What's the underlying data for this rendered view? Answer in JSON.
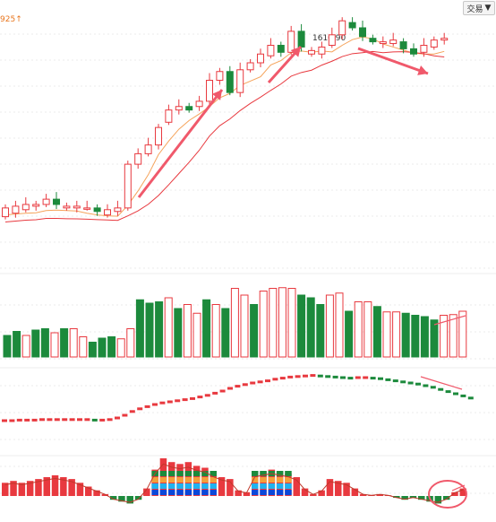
{
  "toolbar": {
    "trade_label": "交易",
    "trade_caret": "▼",
    "trade_icon": "caret-down-icon"
  },
  "header": {
    "price_readout": "925",
    "readout_arrow": "↑",
    "readout_color": "#e8761e"
  },
  "colors": {
    "up": "#e8393f",
    "down": "#1c8a3c",
    "ma_fast": "#f5a35a",
    "ma_slow": "#e8393f",
    "grid": "#d8d8d8",
    "annotation": "#f0596b"
  },
  "chart_data": [
    {
      "type": "candlestick",
      "panel": "price",
      "peak_label": "1610.90",
      "candles": [
        {
          "o": 0.12,
          "c": 0.17
        },
        {
          "o": 0.14,
          "c": 0.18
        },
        {
          "o": 0.16,
          "c": 0.19
        },
        {
          "o": 0.18,
          "c": 0.19
        },
        {
          "o": 0.19,
          "c": 0.22
        },
        {
          "o": 0.22,
          "c": 0.19
        },
        {
          "o": 0.17,
          "c": 0.18
        },
        {
          "o": 0.17,
          "c": 0.18
        },
        {
          "o": 0.17,
          "c": 0.17
        },
        {
          "o": 0.17,
          "c": 0.15
        },
        {
          "o": 0.13,
          "c": 0.16
        },
        {
          "o": 0.15,
          "c": 0.17
        },
        {
          "o": 0.17,
          "c": 0.42
        },
        {
          "o": 0.42,
          "c": 0.48
        },
        {
          "o": 0.48,
          "c": 0.53
        },
        {
          "o": 0.53,
          "c": 0.63
        },
        {
          "o": 0.66,
          "c": 0.73
        },
        {
          "o": 0.73,
          "c": 0.75
        },
        {
          "o": 0.75,
          "c": 0.73
        },
        {
          "o": 0.75,
          "c": 0.78
        },
        {
          "o": 0.78,
          "c": 0.9
        },
        {
          "o": 0.9,
          "c": 0.95
        },
        {
          "o": 0.95,
          "c": 0.83
        },
        {
          "o": 0.83,
          "c": 0.96
        },
        {
          "o": 0.96,
          "c": 1.0
        },
        {
          "o": 1.0,
          "c": 1.05
        },
        {
          "o": 1.04,
          "c": 1.1
        },
        {
          "o": 1.1,
          "c": 1.06
        },
        {
          "o": 1.06,
          "c": 1.18
        },
        {
          "o": 1.18,
          "c": 1.09
        },
        {
          "o": 1.05,
          "c": 1.07
        },
        {
          "o": 1.05,
          "c": 1.09
        },
        {
          "o": 1.1,
          "c": 1.16
        },
        {
          "o": 1.16,
          "c": 1.24
        },
        {
          "o": 1.23,
          "c": 1.2
        },
        {
          "o": 1.2,
          "c": 1.15
        },
        {
          "o": 1.14,
          "c": 1.12
        },
        {
          "o": 1.11,
          "c": 1.12
        },
        {
          "o": 1.11,
          "c": 1.13
        },
        {
          "o": 1.12,
          "c": 1.08
        },
        {
          "o": 1.08,
          "c": 1.05
        },
        {
          "o": 1.06,
          "c": 1.1
        },
        {
          "o": 1.09,
          "c": 1.13
        },
        {
          "o": 1.13,
          "c": 1.14
        }
      ]
    },
    {
      "type": "bar",
      "panel": "volume",
      "values": [
        0.32,
        0.38,
        0.32,
        0.4,
        0.42,
        0.36,
        0.42,
        0.42,
        0.3,
        0.22,
        0.28,
        0.3,
        0.27,
        0.42,
        0.85,
        0.8,
        0.82,
        0.88,
        0.72,
        0.78,
        0.65,
        0.85,
        0.78,
        0.72,
        1.02,
        0.92,
        0.78,
        0.98,
        1.02,
        1.03,
        1.02,
        0.92,
        0.88,
        0.78,
        0.92,
        0.95,
        0.68,
        0.82,
        0.82,
        0.75,
        0.67,
        0.67,
        0.65,
        0.62,
        0.6,
        0.55,
        0.62,
        0.63,
        0.68
      ],
      "up": [
        0,
        0,
        1,
        0,
        0,
        1,
        0,
        1,
        1,
        0,
        0,
        0,
        1,
        1,
        0,
        0,
        0,
        1,
        0,
        1,
        1,
        0,
        1,
        0,
        1,
        1,
        0,
        1,
        1,
        1,
        1,
        0,
        0,
        0,
        1,
        1,
        0,
        1,
        1,
        0,
        1,
        1,
        0,
        0,
        0,
        0,
        1,
        1,
        1
      ]
    },
    {
      "type": "line",
      "panel": "indicator",
      "values": [
        0.1,
        0.1,
        0.11,
        0.11,
        0.11,
        0.12,
        0.12,
        0.12,
        0.12,
        0.12,
        0.12,
        0.12,
        0.11,
        0.11,
        0.12,
        0.15,
        0.2,
        0.27,
        0.32,
        0.36,
        0.4,
        0.43,
        0.45,
        0.47,
        0.49,
        0.51,
        0.54,
        0.57,
        0.61,
        0.65,
        0.7,
        0.74,
        0.77,
        0.8,
        0.82,
        0.84,
        0.87,
        0.89,
        0.91,
        0.92,
        0.93,
        0.94,
        0.93,
        0.92,
        0.91,
        0.9,
        0.89,
        0.9,
        0.9,
        0.89,
        0.88,
        0.86,
        0.84,
        0.82,
        0.8,
        0.78,
        0.75,
        0.72,
        0.68,
        0.64,
        0.6,
        0.56,
        0.52
      ]
    },
    {
      "type": "bar",
      "panel": "oscillator",
      "values": [
        0.35,
        0.4,
        0.35,
        0.4,
        0.45,
        0.5,
        0.55,
        0.5,
        0.45,
        0.35,
        0.25,
        0.15,
        0.05,
        -0.1,
        -0.15,
        -0.2,
        -0.1,
        0.2,
        0.7,
        1.0,
        0.9,
        0.85,
        0.9,
        0.8,
        0.75,
        0.6,
        0.5,
        0.45,
        0.15,
        0.1,
        0.6,
        0.65,
        0.7,
        0.65,
        0.6,
        0.5,
        0.2,
        0.05,
        0.15,
        0.45,
        0.4,
        0.35,
        0.2,
        0.05,
        0.02,
        0.05,
        0.02,
        -0.05,
        -0.1,
        -0.05,
        -0.1,
        -0.15,
        -0.2,
        -0.1,
        0.1,
        0.2
      ]
    }
  ]
}
